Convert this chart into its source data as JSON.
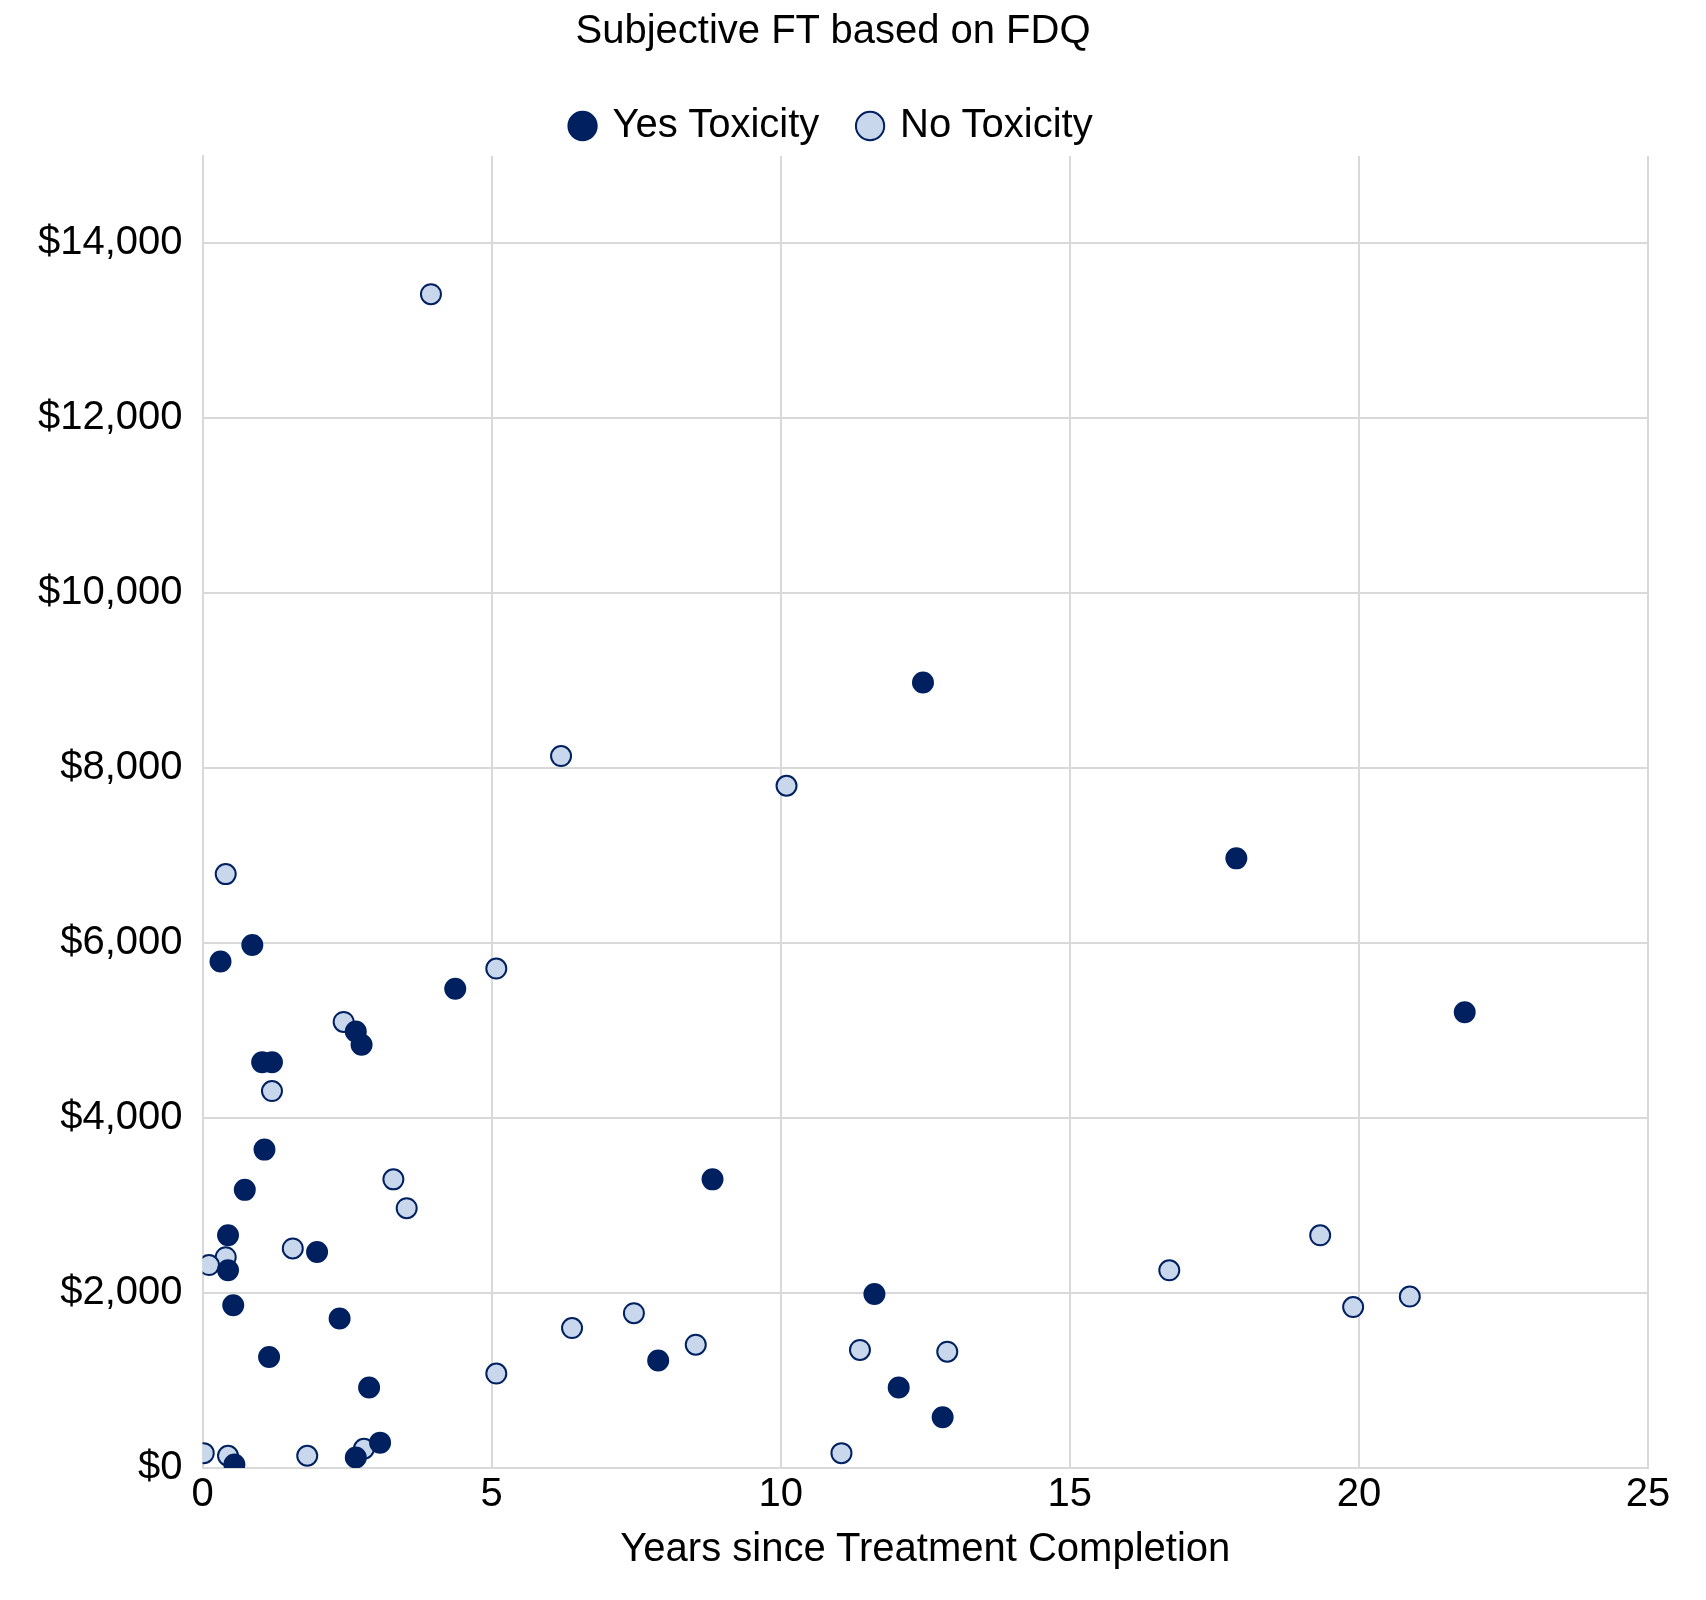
{
  "chart_data": {
    "type": "scatter",
    "title": "Subjective FT based on FDQ",
    "xlabel": "Years since Treatment Completion",
    "xlim": [
      0,
      25
    ],
    "xticks": [
      0,
      5,
      10,
      15,
      20,
      25
    ],
    "ylim": [
      0,
      15000
    ],
    "yticks": [
      {
        "value": 0,
        "label": "$0"
      },
      {
        "value": 2000,
        "label": "$2,000"
      },
      {
        "value": 4000,
        "label": "$4,000"
      },
      {
        "value": 6000,
        "label": "$6,000"
      },
      {
        "value": 8000,
        "label": "$8,000"
      },
      {
        "value": 10000,
        "label": "$10,000"
      },
      {
        "value": 12000,
        "label": "$12,000"
      },
      {
        "value": 14000,
        "label": "$14,000"
      }
    ],
    "grid": true,
    "legend": "top",
    "marker": "circle",
    "series": [
      {
        "name": "Yes Toxicity",
        "color": "#002060",
        "x": [
          0.31,
          0.86,
          4.37,
          2.65,
          2.75,
          1.03,
          1.2,
          1.07,
          0.73,
          0.44,
          0.44,
          1.98,
          0.53,
          2.37,
          1.15,
          2.88,
          3.07,
          2.65,
          0.55,
          8.82,
          7.88,
          11.62,
          12.04,
          12.8,
          12.46,
          17.88,
          21.83
        ],
        "values": [
          5790,
          5980,
          5480,
          4990,
          4840,
          4640,
          4640,
          3640,
          3180,
          2660,
          2260,
          2470,
          1860,
          1710,
          1270,
          920,
          290,
          120,
          40,
          3300,
          1230,
          1990,
          920,
          580,
          8980,
          6970,
          5210
        ]
      },
      {
        "name": "No Toxicity",
        "color": "#c9d7ec",
        "x": [
          3.95,
          6.2,
          10.1,
          0.4,
          5.08,
          2.44,
          1.2,
          3.3,
          3.53,
          1.56,
          0.4,
          0.11,
          0.02,
          0.44,
          1.81,
          2.79,
          5.08,
          6.39,
          7.46,
          8.53,
          11.05,
          11.37,
          12.88,
          16.72,
          19.33,
          19.9,
          20.88
        ],
        "values": [
          13420,
          8140,
          7800,
          6790,
          5710,
          5100,
          4310,
          3300,
          2970,
          2510,
          2410,
          2320,
          170,
          140,
          140,
          220,
          1080,
          1600,
          1770,
          1410,
          170,
          1350,
          1330,
          2260,
          2660,
          1840,
          1960
        ]
      }
    ]
  }
}
